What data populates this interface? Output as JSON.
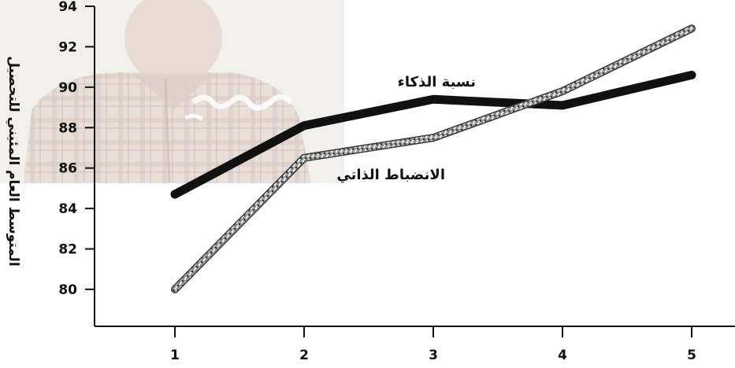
{
  "chart_data": {
    "type": "line",
    "ylabel": "المتوسط العام المئيني للتحصيل",
    "xlabel": "",
    "title": "",
    "x": [
      1,
      2,
      3,
      4,
      5
    ],
    "x_tick_labels": [
      "1",
      "2",
      "3",
      "4",
      "5"
    ],
    "y_tick_labels": [
      "80",
      "82",
      "84",
      "86",
      "88",
      "90",
      "92",
      "94"
    ],
    "ylim": [
      78.3,
      94
    ],
    "grid": false,
    "legend": "inline labels on lines",
    "series": [
      {
        "name": "نسبة الذكاء",
        "values": [
          84.7,
          88.1,
          89.4,
          89.1,
          90.6
        ],
        "style": "thick-solid",
        "color": "#111111"
      },
      {
        "name": "الانضباط الذاتي",
        "values": [
          80.0,
          86.5,
          87.5,
          89.8,
          92.9
        ],
        "style": "textured-outline",
        "color": "#555555"
      }
    ]
  },
  "colors": {
    "axis": "#111111",
    "photo_tint": "#e9e4df",
    "series_solid": "#111111",
    "series_textured": "#777777"
  },
  "background": {
    "photo_icon": "person-photo-background"
  }
}
